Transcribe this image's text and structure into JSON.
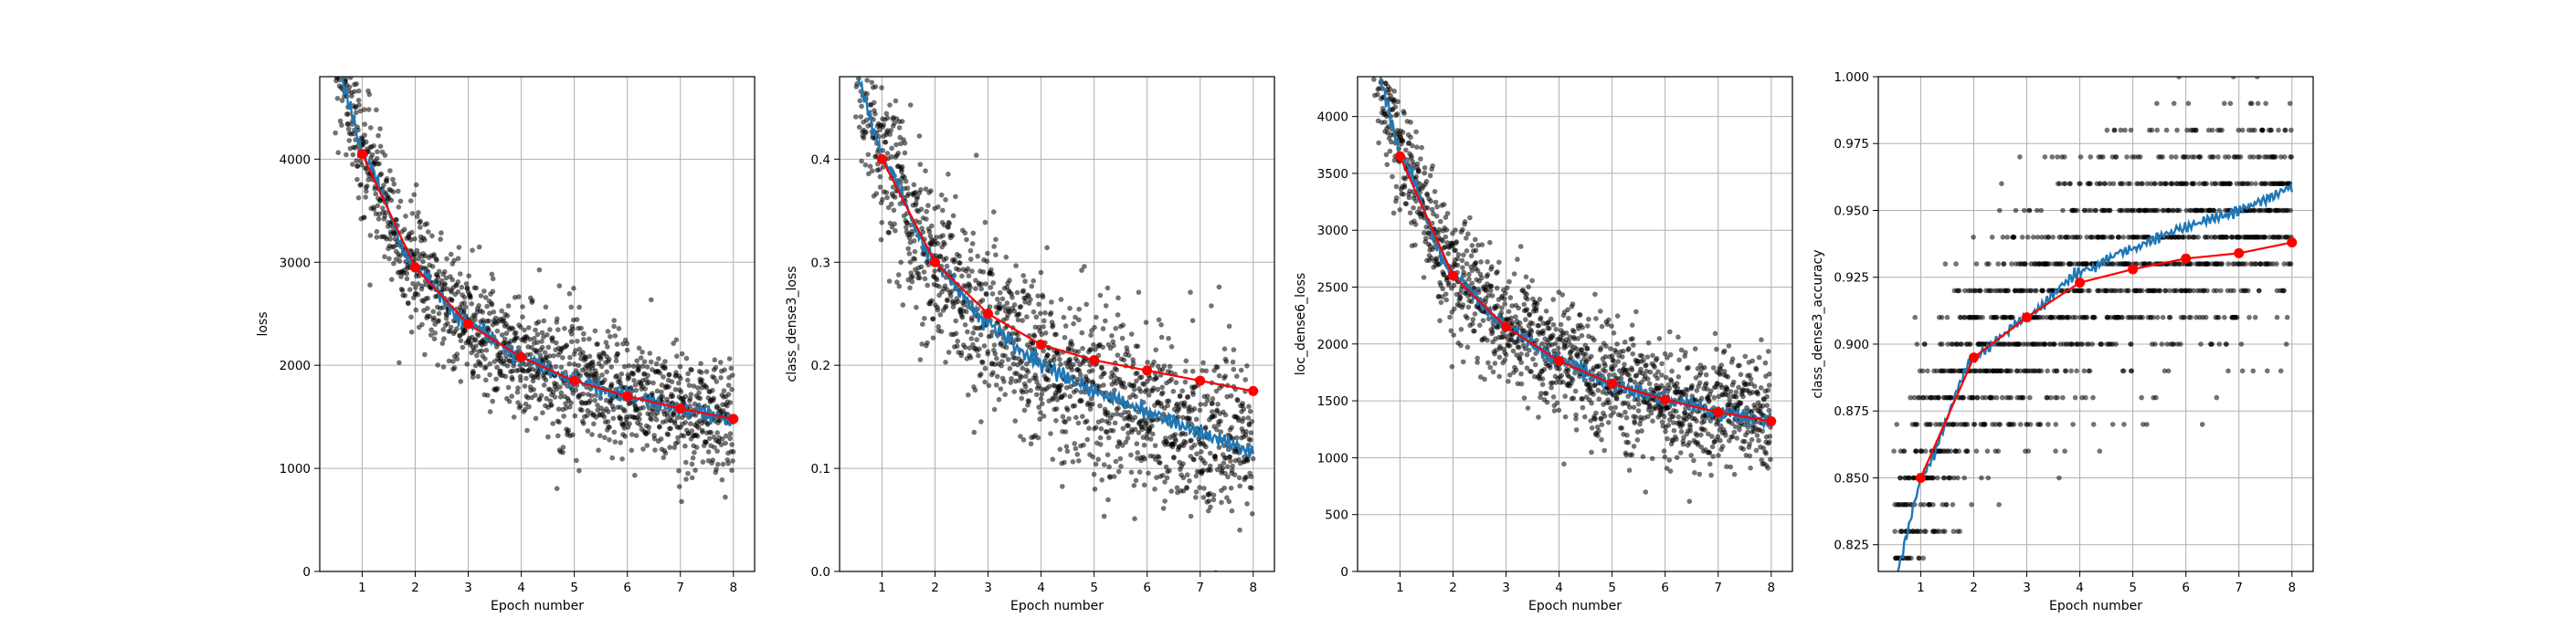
{
  "figure": {
    "colors": {
      "scatter": "#000000",
      "smooth": "#1f77b4",
      "epoch": "#ff0000",
      "grid": "#b0b0b0"
    }
  },
  "chart_data": [
    {
      "type": "scatter",
      "xlabel": "Epoch number",
      "ylabel": "loss",
      "xlim": [
        0.2,
        8.4
      ],
      "ylim": [
        0,
        4800
      ],
      "xticks": [
        "1",
        "2",
        "3",
        "4",
        "5",
        "6",
        "7",
        "8"
      ],
      "yticks": [
        "0",
        "1000",
        "2000",
        "3000",
        "4000"
      ],
      "grid": true,
      "series": [
        {
          "values": [
            [
              1,
              4050
            ],
            [
              2,
              2950
            ],
            [
              3,
              2400
            ],
            [
              4,
              2080
            ],
            [
              5,
              1850
            ],
            [
              6,
              1700
            ],
            [
              7,
              1580
            ],
            [
              8,
              1480
            ]
          ]
        }
      ]
    },
    {
      "type": "scatter",
      "xlabel": "Epoch number",
      "ylabel": "class_dense3_loss",
      "xlim": [
        0.2,
        8.4
      ],
      "ylim": [
        0,
        0.48
      ],
      "xticks": [
        "1",
        "2",
        "3",
        "4",
        "5",
        "6",
        "7",
        "8"
      ],
      "yticks": [
        "0.0",
        "0.1",
        "0.2",
        "0.3",
        "0.4"
      ],
      "grid": true,
      "series": [
        {
          "values": [
            [
              1,
              0.4
            ],
            [
              2,
              0.3
            ],
            [
              3,
              0.25
            ],
            [
              4,
              0.22
            ],
            [
              5,
              0.205
            ],
            [
              6,
              0.195
            ],
            [
              7,
              0.185
            ],
            [
              8,
              0.175
            ]
          ]
        }
      ]
    },
    {
      "type": "scatter",
      "xlabel": "Epoch number",
      "ylabel": "loc_dense6_loss",
      "xlim": [
        0.2,
        8.4
      ],
      "ylim": [
        0,
        4350
      ],
      "xticks": [
        "1",
        "2",
        "3",
        "4",
        "5",
        "6",
        "7",
        "8"
      ],
      "yticks": [
        "0",
        "500",
        "1000",
        "1500",
        "2000",
        "2500",
        "3000",
        "3500",
        "4000"
      ],
      "grid": true,
      "series": [
        {
          "values": [
            [
              1,
              3650
            ],
            [
              2,
              2600
            ],
            [
              3,
              2150
            ],
            [
              4,
              1850
            ],
            [
              5,
              1650
            ],
            [
              6,
              1510
            ],
            [
              7,
              1400
            ],
            [
              8,
              1320
            ]
          ]
        }
      ]
    },
    {
      "type": "scatter",
      "xlabel": "Epoch number",
      "ylabel": "class_dense3_accuracy",
      "xlim": [
        0.2,
        8.4
      ],
      "ylim": [
        0.815,
        1.0
      ],
      "xticks": [
        "1",
        "2",
        "3",
        "4",
        "5",
        "6",
        "7",
        "8"
      ],
      "yticks": [
        "0.825",
        "0.850",
        "0.875",
        "0.900",
        "0.925",
        "0.950",
        "0.975",
        "1.000"
      ],
      "grid": true,
      "series": [
        {
          "values": [
            [
              1,
              0.85
            ],
            [
              2,
              0.895
            ],
            [
              3,
              0.91
            ],
            [
              4,
              0.923
            ],
            [
              5,
              0.928
            ],
            [
              6,
              0.932
            ],
            [
              7,
              0.934
            ],
            [
              8,
              0.938
            ]
          ]
        }
      ]
    }
  ]
}
